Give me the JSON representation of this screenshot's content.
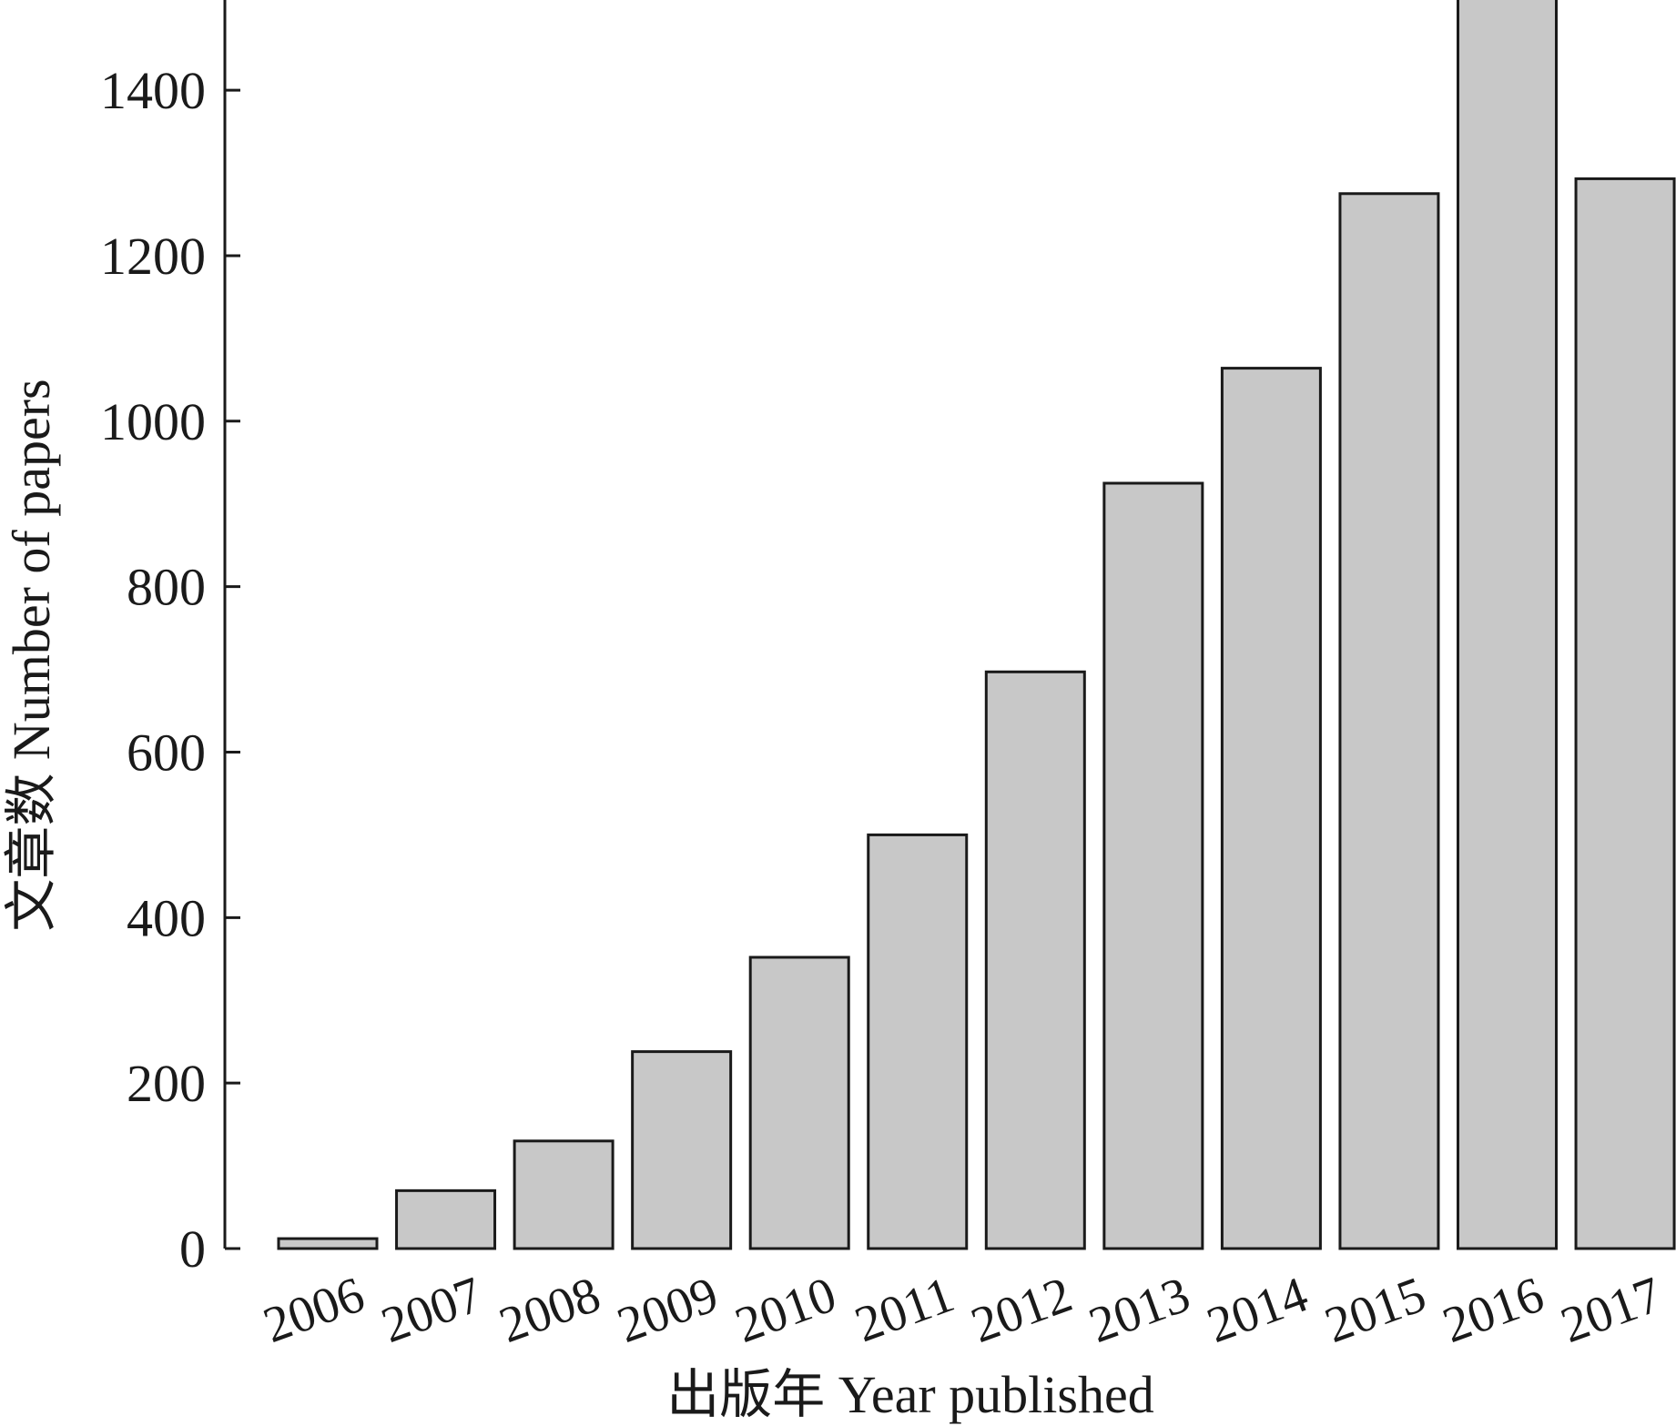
{
  "chart_data": {
    "type": "bar",
    "categories": [
      "2006",
      "2007",
      "2008",
      "2009",
      "2010",
      "2011",
      "2012",
      "2013",
      "2014",
      "2015",
      "2016",
      "2017"
    ],
    "values": [
      12,
      70,
      130,
      238,
      352,
      500,
      697,
      925,
      1064,
      1275,
      1515,
      1293
    ],
    "title": "",
    "xlabel": "出版年 Year published",
    "ylabel": "文章数 Number of papers",
    "ylim": [
      0,
      1515
    ],
    "yticks": [
      0,
      200,
      400,
      600,
      800,
      1000,
      1200,
      1400
    ],
    "grid": false,
    "legend": "none",
    "colors": {
      "bar_fill": "#c8c8c8",
      "bar_stroke": "#1a1a1a"
    }
  }
}
